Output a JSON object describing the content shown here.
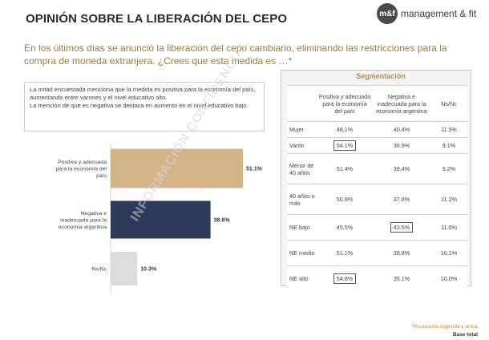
{
  "header": {
    "title": "OPINIÓN SOBRE LA LIBERACIÓN DEL CEPO",
    "logo_mark": "m&f",
    "logo_text": "management & fit"
  },
  "subtitle": "En los últimos días se anunció la liberación del cepo cambiario, eliminando las restricciones para la compra de moneda extranjera. ¿Crees que esta medida es …*",
  "summary": {
    "p1": "La mitad encuestada menciona que la medida es positiva para la economía del país, aumentando entre varones y el nivel educativo alto.",
    "p2": "La mención de que es negativa se destaca en aumento en el nivel educativo bajo."
  },
  "chart_data": {
    "type": "bar",
    "orientation": "horizontal",
    "categories": [
      "Positiva y adecuada para la economía del país",
      "Negativa e inadecuada para la economía argentina",
      "Ns/Nc"
    ],
    "values": [
      51.1,
      38.6,
      10.3
    ],
    "value_labels": [
      "51.1%",
      "38.6%",
      "10.3%"
    ],
    "colors": [
      "#d6b48a",
      "#2e3a5a",
      "#dcdcdc"
    ],
    "unit": "%"
  },
  "segmentation": {
    "title": "Segmentación",
    "headers": [
      "",
      "Positiva y adecuada para la economía del país",
      "Negativa e inadecuada para la economía argentina",
      "Ns/Nc"
    ],
    "rows": [
      {
        "label": "Mujer",
        "v1": "48.1%",
        "v2": "40.4%",
        "v3": "11.5%"
      },
      {
        "label": "Varón",
        "v1": "54.1%",
        "v2": "36.9%",
        "v3": "9.1%"
      },
      {
        "label": "Menor de 40 años",
        "v1": "51.4%",
        "v2": "39.4%",
        "v3": "9.2%"
      },
      {
        "label": "40 años o más",
        "v1": "50.9%",
        "v2": "37.8%",
        "v3": "11.2%"
      },
      {
        "label": "NE bajo",
        "v1": "45.5%",
        "v2": "43.5%",
        "v3": "11.0%"
      },
      {
        "label": "NE medio",
        "v1": "51.1%",
        "v2": "38.8%",
        "v3": "10.1%"
      },
      {
        "label": "NE alto",
        "v1": "54.8%",
        "v2": "35.1%",
        "v3": "10.0%"
      }
    ]
  },
  "footer": {
    "note": "*Respuesta sugerida y única",
    "base": "Base total"
  },
  "watermark": "INFORMACIÓN CONFIDENCIAL"
}
